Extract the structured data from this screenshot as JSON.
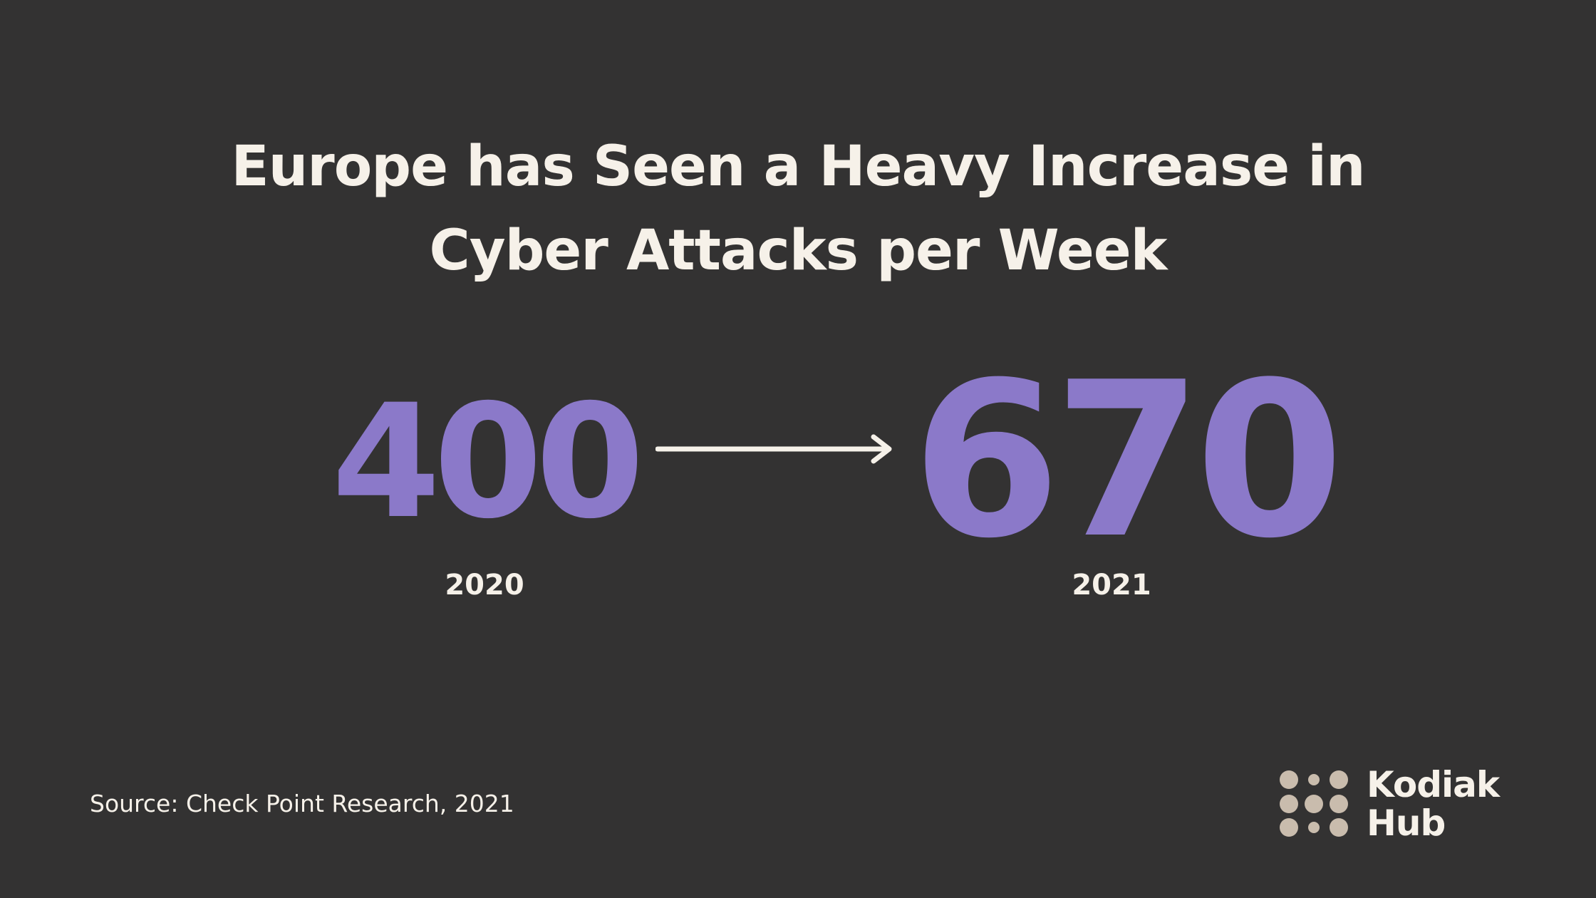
{
  "colors": {
    "background": "#333232",
    "text": "#f6f1e9",
    "accent": "#8b79c9",
    "logo_dots": "#c9bcad"
  },
  "title": {
    "line1": "Europe has Seen a Heavy Increase in",
    "line2": "Cyber Attacks per Week"
  },
  "stats": {
    "before": {
      "value": "400",
      "year": "2020"
    },
    "after": {
      "value": "670",
      "year": "2021"
    },
    "connector_icon": "right-arrow-icon"
  },
  "source": "Source: Check Point Research, 2021",
  "brand": {
    "logo_icon": "dot-grid-logo-icon",
    "name_line1": "Kodiak",
    "name_line2": "Hub"
  }
}
